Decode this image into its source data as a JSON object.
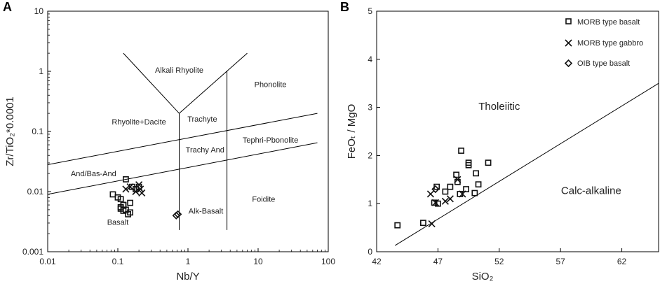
{
  "chart_data": [
    {
      "panel": "A",
      "type": "scatter",
      "title": "",
      "xlabel": "Nb/Y",
      "ylabel": "Zr/TiO₂*0.0001",
      "x_scale": "log",
      "y_scale": "log",
      "xlim": [
        0.01,
        100
      ],
      "ylim": [
        0.001,
        10
      ],
      "x_ticks": [
        0.01,
        0.1,
        1,
        10,
        100
      ],
      "x_tick_labels": [
        "0.01",
        "0.1",
        "1",
        "10",
        "100"
      ],
      "y_ticks": [
        0.001,
        0.01,
        0.1,
        1,
        10
      ],
      "y_tick_labels": [
        "0.001",
        "0.01",
        "0.1",
        "1",
        "10"
      ],
      "boundaries": [
        {
          "name": "upper-diagonal",
          "points": [
            [
              0.01,
              0.028
            ],
            [
              70,
              0.2
            ]
          ]
        },
        {
          "name": "lower-diagonal",
          "points": [
            [
              0.01,
              0.009
            ],
            [
              70,
              0.065
            ]
          ]
        },
        {
          "name": "v-left-arm",
          "points": [
            [
              0.12,
              2.0
            ],
            [
              0.75,
              0.2
            ]
          ]
        },
        {
          "name": "v-right-arm",
          "points": [
            [
              0.75,
              0.2
            ],
            [
              7,
              2.0
            ]
          ]
        },
        {
          "name": "vertical-1",
          "points": [
            [
              0.75,
              0.2
            ],
            [
              0.75,
              0.0023
            ]
          ]
        },
        {
          "name": "vertical-2",
          "points": [
            [
              3.6,
              1.0
            ],
            [
              3.6,
              0.0023
            ]
          ]
        }
      ],
      "fields": [
        {
          "label": "Alkali Rhyolite",
          "x": 0.75,
          "y": 0.95
        },
        {
          "label": "Phonolite",
          "x": 15,
          "y": 0.55
        },
        {
          "label": "Trachyte",
          "x": 1.6,
          "y": 0.145
        },
        {
          "label": "Rhyolite+Dacite",
          "x": 0.2,
          "y": 0.13
        },
        {
          "label": "Tephri-Pbonolite",
          "x": 15,
          "y": 0.065
        },
        {
          "label": "Trachy And",
          "x": 1.75,
          "y": 0.045
        },
        {
          "label": "And/Bas-And",
          "x": 0.045,
          "y": 0.018
        },
        {
          "label": "Foidite",
          "x": 12,
          "y": 0.0068
        },
        {
          "label": "Alk-Basalt",
          "x": 1.8,
          "y": 0.0043
        },
        {
          "label": "Basalt",
          "x": 0.1,
          "y": 0.0028
        }
      ],
      "series": [
        {
          "name": "MORB type basalt",
          "marker": "square",
          "x": [
            0.13,
            0.085,
            0.1,
            0.11,
            0.12,
            0.15,
            0.16,
            0.18,
            0.2,
            0.11,
            0.13,
            0.15,
            0.12,
            0.14,
            0.11,
            0.12
          ],
          "y": [
            0.016,
            0.009,
            0.008,
            0.0075,
            0.006,
            0.0065,
            0.012,
            0.011,
            0.012,
            0.0055,
            0.005,
            0.0045,
            0.0048,
            0.0042,
            0.0052,
            0.006
          ]
        },
        {
          "name": "MORB type gabbro",
          "marker": "x",
          "x": [
            0.13,
            0.15,
            0.18,
            0.2,
            0.22,
            0.21
          ],
          "y": [
            0.011,
            0.012,
            0.01,
            0.013,
            0.0095,
            0.011
          ]
        },
        {
          "name": "OIB type basalt",
          "marker": "diamond",
          "x": [
            0.68,
            0.72
          ],
          "y": [
            0.004,
            0.0042
          ]
        }
      ]
    },
    {
      "panel": "B",
      "type": "scatter",
      "title": "",
      "xlabel": "SiO₂",
      "ylabel": "FeOₜ / MgO",
      "xlim": [
        42,
        65
      ],
      "ylim": [
        0,
        5
      ],
      "x_ticks": [
        42,
        47,
        52,
        57,
        62
      ],
      "x_tick_labels": [
        "42",
        "47",
        "52",
        "57",
        "62"
      ],
      "y_ticks": [
        0,
        1,
        2,
        3,
        4,
        5
      ],
      "y_tick_labels": [
        "0",
        "1",
        "2",
        "3",
        "4",
        "5"
      ],
      "boundary": {
        "name": "tholeiitic-calc-alkaline",
        "points": [
          [
            43.5,
            0.13
          ],
          [
            65,
            3.5
          ]
        ]
      },
      "fields": [
        {
          "label": "Tholeiitic",
          "x": 52,
          "y": 2.95
        },
        {
          "label": "Calc-alkaline",
          "x": 59.5,
          "y": 1.2
        }
      ],
      "legend_position": "top-right",
      "series": [
        {
          "name": "MORB type basalt",
          "marker": "square",
          "x": [
            43.7,
            45.8,
            46.7,
            46.9,
            47.6,
            48.0,
            48.5,
            48.9,
            49.5,
            49.5,
            50.1,
            50.3,
            51.1,
            48.6,
            48.8,
            49.3,
            50.0,
            47.0
          ],
          "y": [
            0.55,
            0.6,
            1.02,
            1.35,
            1.25,
            1.35,
            1.6,
            2.1,
            1.85,
            1.8,
            1.63,
            1.4,
            1.85,
            1.45,
            1.2,
            1.3,
            1.22,
            1.0
          ]
        },
        {
          "name": "MORB type gabbro",
          "marker": "x",
          "x": [
            46.4,
            46.5,
            46.8,
            47.6,
            48.0,
            48.6,
            49.0
          ],
          "y": [
            1.2,
            0.58,
            1.02,
            1.05,
            1.1,
            1.5,
            1.2
          ]
        },
        {
          "name": "OIB type basalt",
          "marker": "diamond",
          "x": [
            46.8
          ],
          "y": [
            1.3
          ]
        }
      ]
    }
  ],
  "legend": {
    "items": [
      {
        "label": "MORB type basalt",
        "marker": "square"
      },
      {
        "label": "MORB type gabbro",
        "marker": "x"
      },
      {
        "label": "OIB type basalt",
        "marker": "diamond"
      }
    ]
  },
  "panel_labels": {
    "a": "A",
    "b": "B"
  }
}
